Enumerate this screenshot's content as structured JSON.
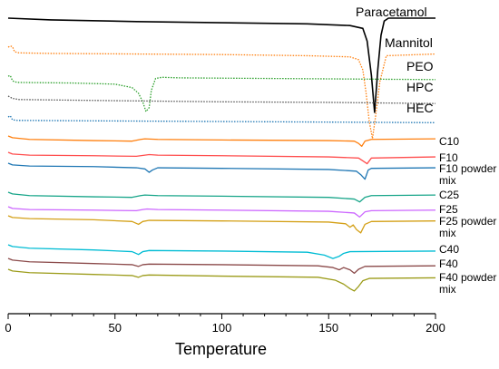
{
  "chart_data": {
    "type": "line",
    "title": "",
    "xlabel": "Temperature",
    "ylabel": "",
    "xlim": [
      0,
      200
    ],
    "xticks": [
      "0",
      "50",
      "100",
      "150",
      "200"
    ],
    "grid": false,
    "series": [
      {
        "name": "Paracetamol",
        "color": "#000000",
        "style": "solid",
        "x": [
          0,
          20,
          60,
          100,
          140,
          160,
          166,
          168,
          170,
          171.5,
          173,
          174.5,
          176,
          178,
          200
        ],
        "y": [
          0,
          -0.3,
          -0.6,
          -0.8,
          -1.0,
          -1.3,
          -1.8,
          -4,
          -10,
          -16.5,
          -9,
          -3,
          -0.5,
          0,
          0
        ]
      },
      {
        "name": "Mannitol",
        "color": "#ff7f0e",
        "style": "dotted",
        "x": [
          0,
          1,
          2,
          3,
          5,
          20,
          60,
          100,
          140,
          160,
          164,
          166,
          167.5,
          169,
          170.5,
          172,
          174,
          177,
          200
        ],
        "y": [
          0,
          0.2,
          0.1,
          -0.8,
          -1.0,
          -1.1,
          -1.2,
          -1.3,
          -1.5,
          -1.7,
          -2.2,
          -4,
          -8,
          -13,
          -16,
          -12,
          -6,
          -1.5,
          -1.2
        ]
      },
      {
        "name": "PEO",
        "color": "#2ca02c",
        "style": "dotted",
        "x": [
          0,
          1,
          2,
          3,
          5,
          30,
          50,
          58,
          61,
          63,
          64.5,
          66,
          67,
          69,
          72,
          80,
          120,
          200
        ],
        "y": [
          0,
          0.1,
          -0.8,
          -1.0,
          -1.1,
          -1.2,
          -1.4,
          -2.0,
          -3.0,
          -4.5,
          -6.2,
          -5.5,
          -2.5,
          -0.4,
          -0.2,
          -0.3,
          -0.4,
          -0.6
        ]
      },
      {
        "name": "HPC",
        "color": "#555555",
        "style": "dotted",
        "x": [
          0,
          2,
          5,
          50,
          100,
          150,
          200
        ],
        "y": [
          0,
          -0.4,
          -0.6,
          -0.8,
          -1.0,
          -1.1,
          -1.3
        ]
      },
      {
        "name": "HEC",
        "color": "#1f77b4",
        "style": "dotted",
        "x": [
          0,
          1,
          2,
          4,
          50,
          100,
          150,
          200
        ],
        "y": [
          0,
          0.2,
          -0.5,
          -0.6,
          -0.7,
          -0.8,
          -0.9,
          -1.0
        ]
      },
      {
        "name": "C10",
        "color": "#ff7f0e",
        "style": "solid",
        "x": [
          0,
          2,
          10,
          40,
          58,
          62,
          64,
          70,
          100,
          150,
          162,
          164,
          165.5,
          167,
          170,
          200
        ],
        "y": [
          0,
          -0.3,
          -0.6,
          -0.8,
          -0.9,
          -0.6,
          -0.5,
          -0.6,
          -0.7,
          -0.8,
          -0.9,
          -1.3,
          -1.8,
          -0.9,
          -0.6,
          -0.5
        ]
      },
      {
        "name": "F10",
        "color": "#ff4d4d",
        "style": "solid",
        "x": [
          0,
          2,
          10,
          40,
          60,
          64,
          66,
          70,
          100,
          150,
          164,
          166,
          168,
          170,
          200
        ],
        "y": [
          0,
          -0.3,
          -0.5,
          -0.6,
          -0.7,
          -0.5,
          -0.4,
          -0.5,
          -0.6,
          -0.8,
          -1.0,
          -1.5,
          -2.0,
          -1.0,
          -0.8
        ]
      },
      {
        "name": "F10 powder mix",
        "color": "#1f77b4",
        "style": "solid",
        "x": [
          0,
          2,
          10,
          40,
          60,
          64,
          66,
          67.5,
          70,
          100,
          150,
          163,
          165,
          167,
          168.5,
          170,
          200
        ],
        "y": [
          0,
          -0.3,
          -0.5,
          -0.6,
          -0.8,
          -1.0,
          -1.6,
          -1.2,
          -0.8,
          -0.9,
          -1.1,
          -1.4,
          -2.0,
          -2.8,
          -1.2,
          -0.9,
          -0.8
        ]
      },
      {
        "name": "C25",
        "color": "#17a589",
        "style": "solid",
        "x": [
          0,
          2,
          10,
          40,
          58,
          62,
          64,
          70,
          100,
          150,
          162,
          164.5,
          167,
          170,
          200
        ],
        "y": [
          0,
          -0.3,
          -0.6,
          -0.8,
          -0.9,
          -0.6,
          -0.5,
          -0.6,
          -0.7,
          -0.9,
          -1.2,
          -1.7,
          -0.9,
          -0.6,
          -0.5
        ]
      },
      {
        "name": "F25",
        "color": "#cc66ff",
        "style": "solid",
        "x": [
          0,
          2,
          10,
          40,
          60,
          63,
          65,
          70,
          100,
          150,
          162,
          164.5,
          167,
          170,
          200
        ],
        "y": [
          0,
          -0.3,
          -0.5,
          -0.6,
          -0.7,
          -0.5,
          -0.4,
          -0.5,
          -0.6,
          -0.8,
          -1.1,
          -1.8,
          -0.9,
          -0.7,
          -0.6
        ]
      },
      {
        "name": "F25 powder mix",
        "color": "#d4a017",
        "style": "solid",
        "x": [
          0,
          2,
          10,
          40,
          58,
          61,
          63,
          66,
          100,
          150,
          158,
          160,
          161.5,
          163,
          165,
          167,
          170,
          200
        ],
        "y": [
          0,
          -0.3,
          -0.5,
          -0.7,
          -1.0,
          -1.5,
          -1.0,
          -0.8,
          -0.9,
          -1.1,
          -1.4,
          -2.0,
          -1.6,
          -2.4,
          -3.0,
          -1.5,
          -1.0,
          -0.9
        ]
      },
      {
        "name": "C40",
        "color": "#00bcd4",
        "style": "solid",
        "x": [
          0,
          2,
          10,
          40,
          58,
          61,
          63,
          66,
          100,
          140,
          148,
          152,
          155,
          157,
          160,
          200
        ],
        "y": [
          0,
          -0.3,
          -0.6,
          -0.9,
          -1.2,
          -1.7,
          -1.2,
          -1.0,
          -1.1,
          -1.3,
          -1.8,
          -2.4,
          -2.0,
          -1.5,
          -1.2,
          -1.1
        ]
      },
      {
        "name": "F40",
        "color": "#8b4a4a",
        "style": "solid",
        "x": [
          0,
          2,
          10,
          40,
          58,
          61,
          63,
          66,
          100,
          145,
          152,
          155,
          157,
          160,
          162,
          164,
          167,
          200
        ],
        "y": [
          0,
          -0.3,
          -0.6,
          -0.9,
          -1.1,
          -1.4,
          -1.1,
          -1.0,
          -1.1,
          -1.3,
          -1.6,
          -2.0,
          -1.6,
          -2.0,
          -2.6,
          -1.9,
          -1.4,
          -1.3
        ]
      },
      {
        "name": "F40 powder mix",
        "color": "#9c9c1a",
        "style": "solid",
        "x": [
          0,
          2,
          10,
          40,
          58,
          61,
          63,
          66,
          100,
          145,
          153,
          157,
          160,
          162,
          164,
          166,
          169,
          200
        ],
        "y": [
          0,
          -0.3,
          -0.6,
          -0.9,
          -1.1,
          -1.4,
          -1.1,
          -1.0,
          -1.2,
          -1.4,
          -1.9,
          -2.6,
          -3.4,
          -3.8,
          -3.0,
          -2.0,
          -1.6,
          -1.5
        ]
      }
    ],
    "labels": [
      {
        "text": "Paracetamol",
        "series": "Paracetamol"
      },
      {
        "text": "Mannitol",
        "series": "Mannitol"
      },
      {
        "text": "PEO",
        "series": "PEO"
      },
      {
        "text": "HPC",
        "series": "HPC"
      },
      {
        "text": "HEC",
        "series": "HEC"
      },
      {
        "text": "C10",
        "series": "C10"
      },
      {
        "text": "F10",
        "series": "F10"
      },
      {
        "text": "F10 powder",
        "text2": "mix",
        "series": "F10 powder mix"
      },
      {
        "text": "C25",
        "series": "C25"
      },
      {
        "text": "F25",
        "series": "F25"
      },
      {
        "text": "F25 powder",
        "text2": "mix",
        "series": "F25 powder mix"
      },
      {
        "text": "C40",
        "series": "C40"
      },
      {
        "text": "F40",
        "series": "F40"
      },
      {
        "text": "F40 powder",
        "text2": "mix",
        "series": "F40 powder mix"
      }
    ]
  }
}
